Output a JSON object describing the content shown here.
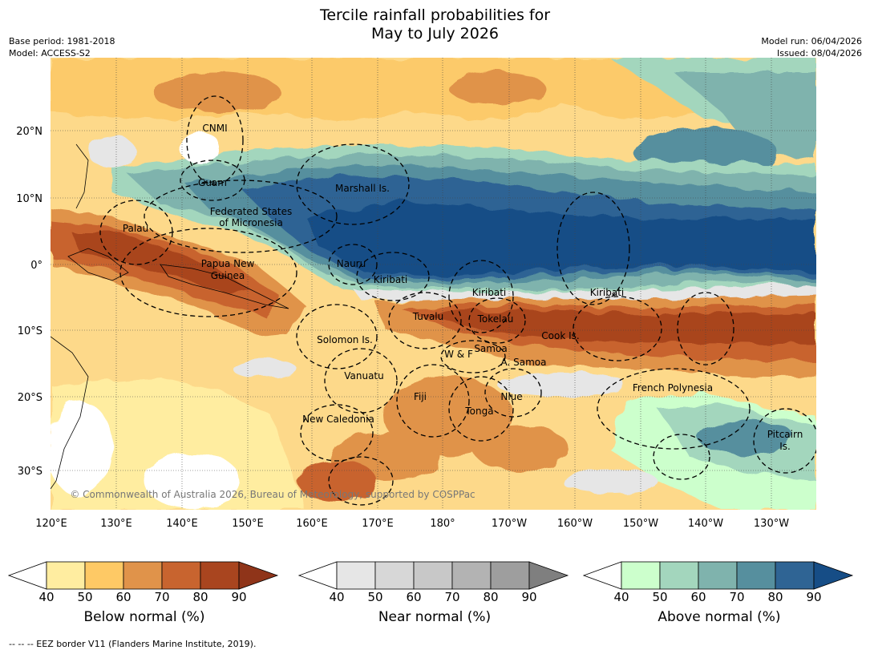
{
  "title": {
    "line1": "Tercile rainfall probabilities for",
    "line2": "May to July 2026"
  },
  "meta": {
    "base_period": "Base period: 1981-2018",
    "model": "Model: ACCESS-S2",
    "model_run": "Model run: 06/04/2026",
    "issued": "Issued: 08/04/2026"
  },
  "map": {
    "lat_labels": [
      "20°N",
      "10°N",
      "0°",
      "10°S",
      "20°S",
      "30°S"
    ],
    "lon_labels": [
      "120°E",
      "130°E",
      "140°E",
      "150°E",
      "160°E",
      "170°E",
      "180°",
      "170°W",
      "160°W",
      "150°W",
      "140°W",
      "130°W"
    ],
    "copyright": "© Commonwealth of Australia 2026, Bureau of Meteorology, supported by COSPPac",
    "regions": [
      "CNMI",
      "Guam",
      "Marshall Is.",
      "Federated States",
      "of Micronesia",
      "Palau",
      "Papua New",
      "Guinea",
      "Nauru",
      "Kiribati",
      "Kiribati",
      "Kiribati",
      "Tuvalu",
      "Tokelau",
      "Cook Is.",
      "Solomon Is.",
      "W & F",
      "Samoa",
      "A. Samoa",
      "Vanuatu",
      "Fiji",
      "Niue",
      "Tonga",
      "French Polynesia",
      "New Caledonia",
      "Pitcairn",
      "Is."
    ]
  },
  "colorbars": [
    {
      "label": "Below normal (%)",
      "ticks": [
        "40",
        "50",
        "60",
        "70",
        "80",
        "90"
      ],
      "colors": [
        "#ffeda0",
        "#fec965",
        "#e0934a",
        "#c8642f",
        "#a9451f"
      ],
      "extend": "#8f3419"
    },
    {
      "label": "Near normal (%)",
      "ticks": [
        "40",
        "50",
        "60",
        "70",
        "80",
        "90"
      ],
      "colors": [
        "#e6e6e6",
        "#d7d7d7",
        "#c8c8c8",
        "#b3b3b3",
        "#9e9e9e"
      ],
      "extend": "#7f7f7f"
    },
    {
      "label": "Above normal (%)",
      "ticks": [
        "40",
        "50",
        "60",
        "70",
        "80",
        "90"
      ],
      "colors": [
        "#ccffcc",
        "#a3d6bd",
        "#7fb3ad",
        "#568f9e",
        "#2f6494"
      ],
      "extend": "#164d86"
    }
  ],
  "footnote": "--  --  -- EEZ border V11 (Flanders Marine Institute, 2019)."
}
